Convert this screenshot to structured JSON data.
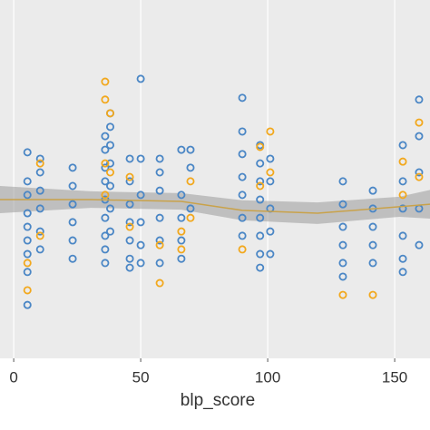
{
  "chart_data": {
    "type": "scatter",
    "x_label": "blp_score",
    "xlim": [
      -5.4,
      163.9
    ],
    "ylim": [
      0,
      10
    ],
    "xticks": [
      0,
      50,
      100,
      150
    ],
    "grid": true,
    "series": [
      {
        "color": "#4a86c5",
        "x": [
          5.4,
          5.4,
          5.4,
          5.4,
          5.4,
          5.4,
          5.4,
          5.4,
          5.4,
          10.4,
          10.4,
          10.4,
          10.4,
          10.4,
          10.4,
          23.2,
          23.2,
          23.2,
          23.2,
          23.2,
          23.2,
          36,
          36,
          36,
          36,
          36,
          36,
          36,
          36,
          36,
          38,
          38,
          38,
          38,
          38,
          38,
          38,
          45.7,
          45.7,
          45.7,
          45.7,
          45.7,
          45.7,
          45.7,
          50,
          50,
          50,
          50,
          50,
          50,
          57.5,
          57.5,
          57.5,
          57.5,
          57.5,
          57.5,
          66,
          66,
          66,
          66,
          66,
          69.6,
          69.6,
          69.6,
          90,
          90,
          90,
          90,
          90,
          90,
          90,
          97,
          97,
          97,
          97,
          97,
          97,
          97,
          97,
          101,
          101,
          101,
          101,
          101,
          129.6,
          129.6,
          129.6,
          129.6,
          129.6,
          129.6,
          141.4,
          141.4,
          141.4,
          141.4,
          141.4,
          153.2,
          153.2,
          153.2,
          153.2,
          153.2,
          153.2,
          159.6,
          159.6,
          159.6,
          159.6,
          159.6
        ],
        "y": [
          5.75,
          4.94,
          4.56,
          4.05,
          3.67,
          3.29,
          2.91,
          2.41,
          1.49,
          5.57,
          5.19,
          4.68,
          4.18,
          3.54,
          3.04,
          5.32,
          4.81,
          4.3,
          3.8,
          3.29,
          2.78,
          6.2,
          5.82,
          5.32,
          4.94,
          4.43,
          3.92,
          3.42,
          3.04,
          2.66,
          6.84,
          6.46,
          5.95,
          5.44,
          4.81,
          4.18,
          3.54,
          5.57,
          4.94,
          4.3,
          3.8,
          3.29,
          2.78,
          2.53,
          7.8,
          5.57,
          4.56,
          3.8,
          3.16,
          2.66,
          5.57,
          5.19,
          4.68,
          3.92,
          3.29,
          2.66,
          5.82,
          4.56,
          3.92,
          3.29,
          2.78,
          5.82,
          5.32,
          4.18,
          7.27,
          6.33,
          5.7,
          5.06,
          4.56,
          3.92,
          3.42,
          5.95,
          5.44,
          4.94,
          4.43,
          3.92,
          3.42,
          2.91,
          2.53,
          5.57,
          4.94,
          4.18,
          3.54,
          2.91,
          4.94,
          4.3,
          3.67,
          3.16,
          2.66,
          2.28,
          4.68,
          4.18,
          3.67,
          3.16,
          2.66,
          5.95,
          4.94,
          4.18,
          3.42,
          2.78,
          2.41,
          7.22,
          6.2,
          5.19,
          4.18,
          3.16
        ]
      },
      {
        "color": "#f2a81d",
        "x": [
          5.4,
          5.4,
          10.4,
          10.4,
          36,
          36,
          36,
          36,
          38,
          38,
          45.7,
          45.7,
          57.5,
          57.5,
          66,
          66,
          69.6,
          69.6,
          90,
          97,
          97,
          101,
          101,
          129.6,
          141.4,
          153.2,
          153.2,
          159.6,
          159.6
        ],
        "y": [
          2.66,
          1.9,
          5.44,
          3.42,
          7.72,
          7.22,
          5.44,
          4.56,
          6.84,
          5.19,
          5.06,
          3.67,
          3.16,
          2.1,
          3.54,
          3.04,
          4.94,
          3.92,
          3.04,
          5.9,
          4.81,
          6.33,
          5.19,
          1.77,
          1.77,
          5.49,
          4.56,
          6.58,
          5.06
        ]
      }
    ],
    "smooth": {
      "color": "#c9a24a",
      "band_color": "#9a9a9a",
      "x": [
        -5.4,
        30.4,
        66,
        90,
        119.6,
        151.8,
        163.9
      ],
      "y": [
        4.43,
        4.43,
        4.38,
        4.13,
        4.05,
        4.23,
        4.3
      ],
      "lower": [
        4.05,
        4.2,
        4.15,
        3.85,
        3.75,
        3.95,
        3.9
      ],
      "upper": [
        4.81,
        4.66,
        4.61,
        4.41,
        4.35,
        4.51,
        4.7
      ]
    }
  }
}
